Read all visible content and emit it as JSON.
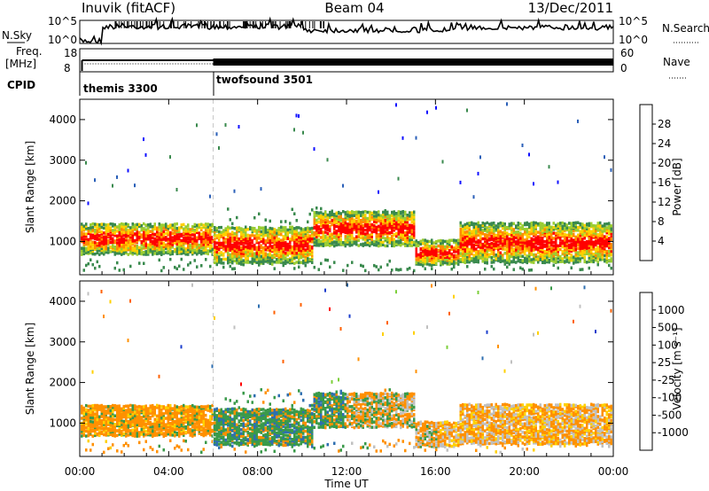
{
  "header": {
    "station": "Inuvik (fitACF)",
    "beam": "Beam 04",
    "date": "13/Dec/2011"
  },
  "panels_top": {
    "nsky_label": "N.Sky",
    "nsearch_label": "N.Search",
    "nsky_ticks": [
      "10^5",
      "10^0"
    ],
    "nsearch_ticks": [
      "10^5",
      "10^0"
    ],
    "freq_label": "Freq.",
    "freq_unit": "[MHz]",
    "freq_ticks": [
      "18",
      "8"
    ],
    "nave_label": "Nave",
    "nave_ticks": [
      "60",
      "0"
    ],
    "cpid_label": "CPID",
    "cpid_modes": [
      {
        "name": "themis 3300",
        "start_hour": 0
      },
      {
        "name": "twofsound 3501",
        "start_hour": 6
      }
    ]
  },
  "chart_data": [
    {
      "type": "heatmap",
      "title": "",
      "xlabel": "",
      "ylabel": "Slant Range [km]",
      "x_range_hours": [
        0,
        24
      ],
      "ylim": [
        180,
        4500
      ],
      "yticks": [
        1000,
        2000,
        3000,
        4000
      ],
      "colorbar": {
        "label": "Power [dB]",
        "ticks": [
          4,
          8,
          12,
          16,
          20,
          24,
          28
        ],
        "range": [
          0,
          32
        ],
        "colors": [
          "#1010ff",
          "#2a5fb8",
          "#3a8a4e",
          "#9acd32",
          "#ffd000",
          "#ff8c00",
          "#ff0000"
        ]
      }
    },
    {
      "type": "heatmap",
      "title": "",
      "xlabel": "Time UT",
      "ylabel": "Slant Range [km]",
      "x_range_hours": [
        0,
        24
      ],
      "xticks": [
        "00:00",
        "04:00",
        "08:00",
        "12:00",
        "16:00",
        "20:00",
        "00:00"
      ],
      "ylim": [
        180,
        4500
      ],
      "yticks": [
        1000,
        2000,
        3000,
        4000
      ],
      "colorbar": {
        "label": "Velocity [m s⁻¹]",
        "ticks": [
          "1000",
          "500",
          "100",
          "25",
          "-25",
          "-100",
          "-500",
          "-1000"
        ],
        "colors": [
          "#1a3ccc",
          "#2f6fb0",
          "#3a9a4a",
          "#7ccf3a",
          "#c0c0c0",
          "#ffd000",
          "#ff9000",
          "#ff6000",
          "#ff0000"
        ]
      }
    }
  ]
}
